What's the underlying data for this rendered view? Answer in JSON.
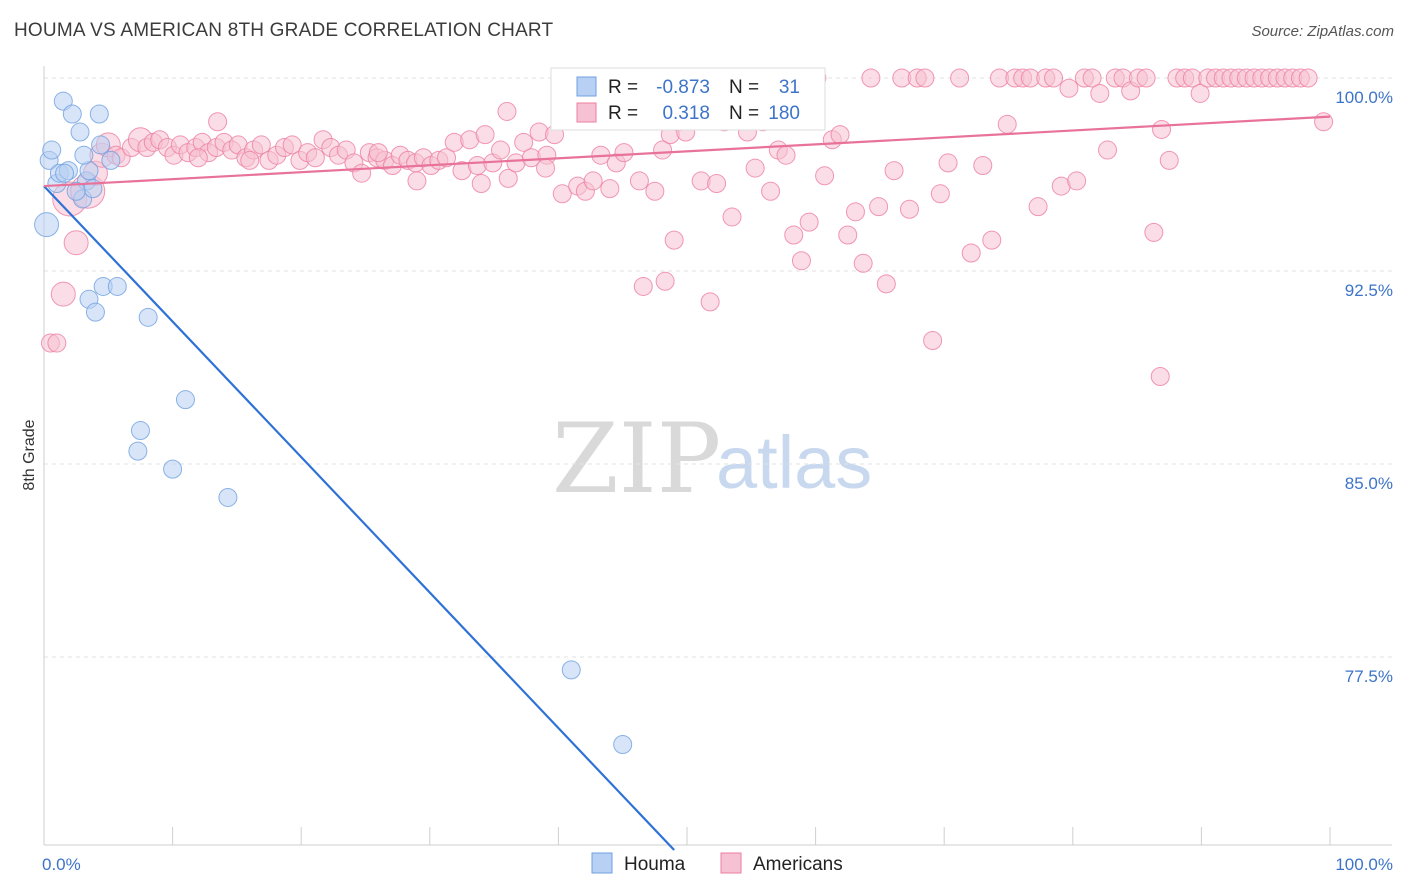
{
  "title": "HOUMA VS AMERICAN 8TH GRADE CORRELATION CHART",
  "source": "Source: ZipAtlas.com",
  "watermark": {
    "zip": "ZIP",
    "atlas": "atlas"
  },
  "colors": {
    "houma": "#6fa0e0",
    "houma_fill": "#b8d0f3",
    "americans": "#ee7fa2",
    "americans_fill": "#f6c1d2",
    "tick_text": "#3d74c8",
    "grid": "#e2e2e2"
  },
  "legend": {
    "r_label": "R =",
    "n_label": "N =",
    "rows": [
      {
        "series": "Houma",
        "r": "-0.873",
        "n": "31"
      },
      {
        "series": "Americans",
        "r": "0.318",
        "n": "180"
      }
    ]
  },
  "chart_data": {
    "type": "scatter",
    "xlabel": "",
    "ylabel": "8th Grade",
    "xlim": [
      0,
      100
    ],
    "ylim": [
      70.0,
      100.5
    ],
    "x_tick_labels": {
      "left": "0.0%",
      "right": "100.0%"
    },
    "y_ticks": [
      {
        "value": 100.0,
        "label": "100.0%"
      },
      {
        "value": 92.5,
        "label": "92.5%"
      },
      {
        "value": 85.0,
        "label": "85.0%"
      },
      {
        "value": 77.5,
        "label": "77.5%"
      }
    ],
    "grid": true,
    "legend_position": "top-center",
    "series": [
      {
        "name": "Houma",
        "color": "#6fa0e0",
        "trend": {
          "x": [
            0.0,
            49.0
          ],
          "y": [
            95.8,
            70.0
          ]
        },
        "points": [
          [
            0.2,
            94.3,
            2
          ],
          [
            0.4,
            96.8,
            1
          ],
          [
            0.6,
            97.2,
            1
          ],
          [
            1.0,
            95.9,
            1
          ],
          [
            1.2,
            96.3,
            1
          ],
          [
            1.5,
            99.1,
            1
          ],
          [
            1.9,
            96.4,
            1
          ],
          [
            2.2,
            98.6,
            1
          ],
          [
            2.8,
            97.9,
            1
          ],
          [
            3.0,
            95.3,
            1
          ],
          [
            3.3,
            96.0,
            1
          ],
          [
            3.5,
            96.4,
            1
          ],
          [
            3.8,
            95.7,
            1
          ],
          [
            4.3,
            98.6,
            1
          ],
          [
            4.4,
            97.4,
            1
          ],
          [
            5.2,
            96.8,
            1
          ],
          [
            3.5,
            91.4,
            1
          ],
          [
            4.0,
            90.9,
            1
          ],
          [
            4.6,
            91.9,
            1
          ],
          [
            5.7,
            91.9,
            1
          ],
          [
            8.1,
            90.7,
            1
          ],
          [
            11.0,
            87.5,
            1
          ],
          [
            7.5,
            86.3,
            1
          ],
          [
            7.3,
            85.5,
            1
          ],
          [
            10.0,
            84.8,
            1
          ],
          [
            14.3,
            83.7,
            1
          ],
          [
            41.0,
            77.0,
            1
          ],
          [
            45.0,
            74.1,
            1
          ],
          [
            1.6,
            96.3,
            1
          ],
          [
            2.5,
            95.6,
            1
          ],
          [
            3.1,
            97.0,
            1
          ]
        ]
      },
      {
        "name": "Americans",
        "color": "#ee7fa2",
        "trend": {
          "x": [
            0.0,
            100.0
          ],
          "y": [
            95.8,
            98.5
          ]
        },
        "points": [
          [
            2.0,
            95.3,
            3
          ],
          [
            2.5,
            93.6,
            2
          ],
          [
            1.5,
            91.6,
            2
          ],
          [
            0.5,
            89.7,
            1
          ],
          [
            1.0,
            89.7,
            1
          ],
          [
            3.4,
            95.6,
            3
          ],
          [
            4.0,
            96.3,
            2
          ],
          [
            4.5,
            97.0,
            2
          ],
          [
            5.0,
            97.4,
            2
          ],
          [
            5.6,
            97.0,
            1
          ],
          [
            6.0,
            96.9,
            1
          ],
          [
            6.8,
            97.3,
            1
          ],
          [
            7.5,
            97.6,
            2
          ],
          [
            8.0,
            97.3,
            1
          ],
          [
            8.5,
            97.5,
            1
          ],
          [
            9.0,
            97.6,
            1
          ],
          [
            9.6,
            97.3,
            1
          ],
          [
            10.1,
            97.0,
            1
          ],
          [
            10.6,
            97.4,
            1
          ],
          [
            11.2,
            97.1,
            1
          ],
          [
            11.8,
            97.3,
            1
          ],
          [
            12.3,
            97.5,
            1
          ],
          [
            12.8,
            97.1,
            1
          ],
          [
            13.4,
            97.3,
            1
          ],
          [
            14.0,
            97.5,
            1
          ],
          [
            14.6,
            97.2,
            1
          ],
          [
            15.1,
            97.4,
            1
          ],
          [
            15.7,
            96.9,
            1
          ],
          [
            16.3,
            97.2,
            1
          ],
          [
            16.9,
            97.4,
            1
          ],
          [
            17.5,
            96.8,
            1
          ],
          [
            18.1,
            97.0,
            1
          ],
          [
            18.7,
            97.3,
            1
          ],
          [
            19.3,
            97.4,
            1
          ],
          [
            19.9,
            96.8,
            1
          ],
          [
            20.5,
            97.1,
            1
          ],
          [
            21.1,
            96.9,
            1
          ],
          [
            21.7,
            97.6,
            1
          ],
          [
            22.3,
            97.3,
            1
          ],
          [
            22.9,
            97.0,
            1
          ],
          [
            23.5,
            97.2,
            1
          ],
          [
            24.1,
            96.7,
            1
          ],
          [
            24.7,
            96.3,
            1
          ],
          [
            25.3,
            97.1,
            1
          ],
          [
            25.9,
            96.9,
            1
          ],
          [
            26.5,
            96.8,
            1
          ],
          [
            27.1,
            96.6,
            1
          ],
          [
            27.7,
            97.0,
            1
          ],
          [
            28.3,
            96.8,
            1
          ],
          [
            28.9,
            96.7,
            1
          ],
          [
            29.5,
            96.9,
            1
          ],
          [
            30.1,
            96.6,
            1
          ],
          [
            30.7,
            96.8,
            1
          ],
          [
            31.3,
            96.9,
            1
          ],
          [
            31.9,
            97.5,
            1
          ],
          [
            32.5,
            96.4,
            1
          ],
          [
            33.1,
            97.6,
            1
          ],
          [
            33.7,
            96.6,
            1
          ],
          [
            34.3,
            97.8,
            1
          ],
          [
            34.9,
            96.7,
            1
          ],
          [
            35.5,
            97.2,
            1
          ],
          [
            36.1,
            96.1,
            1
          ],
          [
            36.7,
            96.7,
            1
          ],
          [
            37.3,
            97.5,
            1
          ],
          [
            37.9,
            96.9,
            1
          ],
          [
            38.5,
            97.9,
            1
          ],
          [
            39.1,
            97.0,
            1
          ],
          [
            39.7,
            97.8,
            1
          ],
          [
            40.3,
            95.5,
            1
          ],
          [
            40.9,
            98.8,
            1
          ],
          [
            41.5,
            95.8,
            1
          ],
          [
            42.1,
            95.6,
            1
          ],
          [
            42.7,
            96.0,
            1
          ],
          [
            43.3,
            97.0,
            1
          ],
          [
            43.9,
            98.6,
            1
          ],
          [
            44.5,
            96.7,
            1
          ],
          [
            45.1,
            97.1,
            1
          ],
          [
            45.7,
            98.5,
            1
          ],
          [
            46.3,
            96.0,
            1
          ],
          [
            46.9,
            98.4,
            1
          ],
          [
            47.5,
            95.6,
            1
          ],
          [
            48.1,
            97.2,
            1
          ],
          [
            48.7,
            97.8,
            1
          ],
          [
            49.3,
            98.3,
            1
          ],
          [
            49.9,
            97.9,
            1
          ],
          [
            50.5,
            99.0,
            1
          ],
          [
            51.1,
            96.0,
            1
          ],
          [
            51.7,
            98.8,
            1
          ],
          [
            52.3,
            95.9,
            1
          ],
          [
            52.9,
            98.3,
            1
          ],
          [
            53.5,
            94.6,
            1
          ],
          [
            54.1,
            99.0,
            1
          ],
          [
            54.7,
            97.9,
            1
          ],
          [
            55.3,
            96.5,
            1
          ],
          [
            55.9,
            98.3,
            1
          ],
          [
            56.5,
            95.6,
            1
          ],
          [
            57.1,
            97.2,
            1
          ],
          [
            57.7,
            97.0,
            1
          ],
          [
            58.3,
            93.9,
            1
          ],
          [
            58.9,
            92.9,
            1
          ],
          [
            59.5,
            94.4,
            1
          ],
          [
            60.1,
            100.0,
            1
          ],
          [
            60.7,
            96.2,
            1
          ],
          [
            61.3,
            97.6,
            1
          ],
          [
            61.9,
            97.8,
            1
          ],
          [
            62.5,
            93.9,
            1
          ],
          [
            63.1,
            94.8,
            1
          ],
          [
            63.7,
            92.8,
            1
          ],
          [
            64.3,
            100.0,
            1
          ],
          [
            64.9,
            95.0,
            1
          ],
          [
            65.5,
            92.0,
            1
          ],
          [
            66.1,
            96.4,
            1
          ],
          [
            66.7,
            100.0,
            1
          ],
          [
            67.3,
            94.9,
            1
          ],
          [
            67.9,
            100.0,
            1
          ],
          [
            68.5,
            100.0,
            1
          ],
          [
            69.1,
            89.8,
            1
          ],
          [
            69.7,
            95.5,
            1
          ],
          [
            70.3,
            96.7,
            1
          ],
          [
            71.2,
            100.0,
            1
          ],
          [
            72.1,
            93.2,
            1
          ],
          [
            73.0,
            96.6,
            1
          ],
          [
            73.7,
            93.7,
            1
          ],
          [
            74.3,
            100.0,
            1
          ],
          [
            74.9,
            98.2,
            1
          ],
          [
            75.5,
            100.0,
            1
          ],
          [
            76.1,
            100.0,
            1
          ],
          [
            76.7,
            100.0,
            1
          ],
          [
            77.3,
            95.0,
            1
          ],
          [
            77.9,
            100.0,
            1
          ],
          [
            78.5,
            100.0,
            1
          ],
          [
            79.1,
            95.8,
            1
          ],
          [
            79.7,
            99.6,
            1
          ],
          [
            80.3,
            96.0,
            1
          ],
          [
            80.9,
            100.0,
            1
          ],
          [
            81.5,
            100.0,
            1
          ],
          [
            82.1,
            99.4,
            1
          ],
          [
            82.7,
            97.2,
            1
          ],
          [
            83.3,
            100.0,
            1
          ],
          [
            83.9,
            100.0,
            1
          ],
          [
            84.5,
            99.5,
            1
          ],
          [
            85.1,
            100.0,
            1
          ],
          [
            85.7,
            100.0,
            1
          ],
          [
            86.3,
            94.0,
            1
          ],
          [
            86.9,
            98.0,
            1
          ],
          [
            87.5,
            96.8,
            1
          ],
          [
            88.1,
            100.0,
            1
          ],
          [
            88.7,
            100.0,
            1
          ],
          [
            89.3,
            100.0,
            1
          ],
          [
            89.9,
            99.4,
            1
          ],
          [
            90.5,
            100.0,
            1
          ],
          [
            91.1,
            100.0,
            1
          ],
          [
            91.7,
            100.0,
            1
          ],
          [
            92.3,
            100.0,
            1
          ],
          [
            92.9,
            100.0,
            1
          ],
          [
            93.5,
            100.0,
            1
          ],
          [
            94.1,
            100.0,
            1
          ],
          [
            94.7,
            100.0,
            1
          ],
          [
            95.3,
            100.0,
            1
          ],
          [
            95.9,
            100.0,
            1
          ],
          [
            96.5,
            100.0,
            1
          ],
          [
            97.1,
            100.0,
            1
          ],
          [
            97.7,
            100.0,
            1
          ],
          [
            98.3,
            100.0,
            1
          ],
          [
            99.5,
            98.3,
            1
          ],
          [
            86.8,
            88.4,
            1
          ],
          [
            46.6,
            91.9,
            1
          ],
          [
            48.3,
            92.1,
            1
          ],
          [
            49.0,
            93.7,
            1
          ],
          [
            51.8,
            91.3,
            1
          ],
          [
            56.0,
            100.0,
            1
          ],
          [
            36.0,
            98.7,
            1
          ],
          [
            26.0,
            97.1,
            1
          ],
          [
            13.5,
            98.3,
            1
          ],
          [
            16.0,
            96.8,
            1
          ],
          [
            29.0,
            96.0,
            1
          ],
          [
            34.0,
            95.9,
            1
          ],
          [
            39.0,
            96.5,
            1
          ],
          [
            44.0,
            95.7,
            1
          ],
          [
            12.0,
            96.9,
            1
          ]
        ]
      }
    ]
  },
  "bottom_legend": [
    {
      "label": "Houma",
      "color": "#b8d0f3"
    },
    {
      "label": "Americans",
      "color": "#f6c1d2"
    }
  ]
}
